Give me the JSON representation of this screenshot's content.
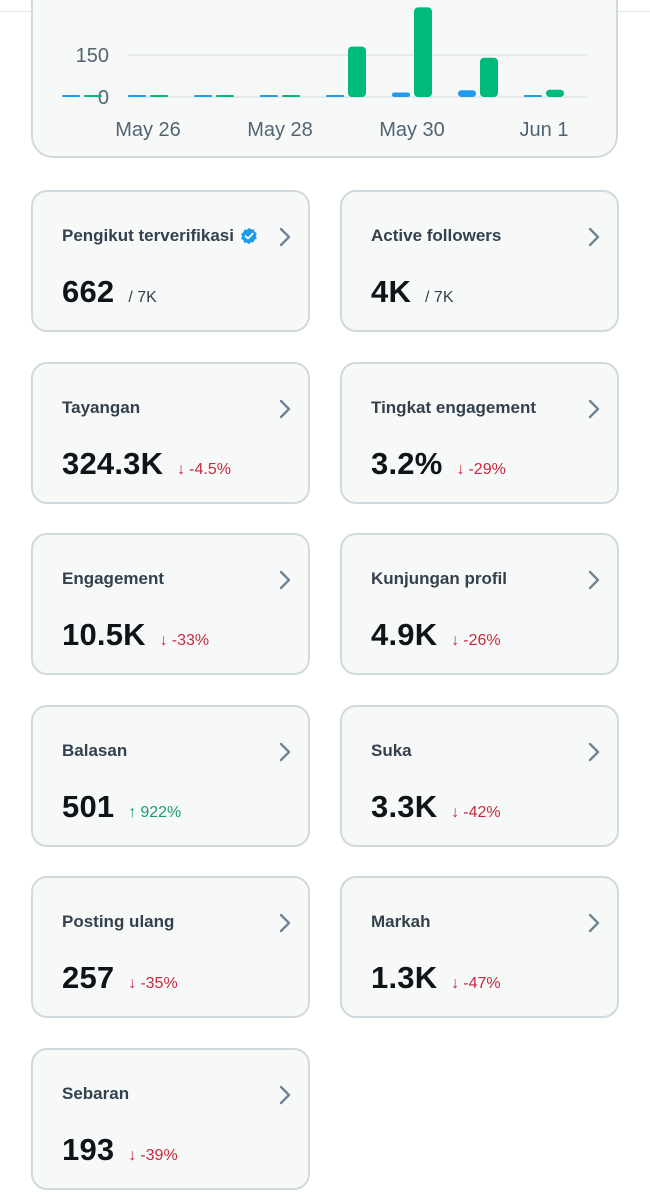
{
  "chart": {
    "y_ticks": [
      "150",
      "0"
    ],
    "x_ticks": [
      "May 26",
      "May 28",
      "May 30",
      "Jun 1"
    ],
    "colors": {
      "blue": "#1d9bf0",
      "green": "#00ba7c",
      "grid": "#e1e6ea"
    }
  },
  "chart_data": {
    "type": "bar",
    "categories": [
      "May 25",
      "May 26",
      "May 27",
      "May 28",
      "May 29",
      "May 30",
      "May 31",
      "Jun 1"
    ],
    "series": [
      {
        "values": [
          4,
          4,
          4,
          4,
          6,
          16,
          24,
          4
        ]
      },
      {
        "values": [
          2,
          2,
          2,
          0,
          180,
          320,
          140,
          26
        ]
      }
    ],
    "yticks": [
      0,
      150
    ],
    "ylim": [
      0,
      320
    ]
  },
  "cards": [
    {
      "label": "Pengikut terverifikasi",
      "value": "662",
      "sub": "/ 7K",
      "verified": true
    },
    {
      "label": "Active followers",
      "value": "4K",
      "sub": "/ 7K"
    },
    {
      "label": "Tayangan",
      "value": "324.3K",
      "delta_arrow": "↓",
      "delta": "-4.5%",
      "trend": "down"
    },
    {
      "label": "Tingkat engagement",
      "value": "3.2%",
      "delta_arrow": "↓",
      "delta": "-29%",
      "trend": "down"
    },
    {
      "label": "Engagement",
      "value": "10.5K",
      "delta_arrow": "↓",
      "delta": "-33%",
      "trend": "down"
    },
    {
      "label": "Kunjungan profil",
      "value": "4.9K",
      "delta_arrow": "↓",
      "delta": "-26%",
      "trend": "down"
    },
    {
      "label": "Balasan",
      "value": "501",
      "delta_arrow": "↑",
      "delta": "922%",
      "trend": "up"
    },
    {
      "label": "Suka",
      "value": "3.3K",
      "delta_arrow": "↓",
      "delta": "-42%",
      "trend": "down"
    },
    {
      "label": "Posting ulang",
      "value": "257",
      "delta_arrow": "↓",
      "delta": "-35%",
      "trend": "down"
    },
    {
      "label": "Markah",
      "value": "1.3K",
      "delta_arrow": "↓",
      "delta": "-47%",
      "trend": "down"
    },
    {
      "label": "Sebaran",
      "value": "193",
      "delta_arrow": "↓",
      "delta": "-39%",
      "trend": "down"
    }
  ],
  "icons": {
    "chevron": "chevron-right-icon",
    "verified": "verified-badge-icon"
  }
}
